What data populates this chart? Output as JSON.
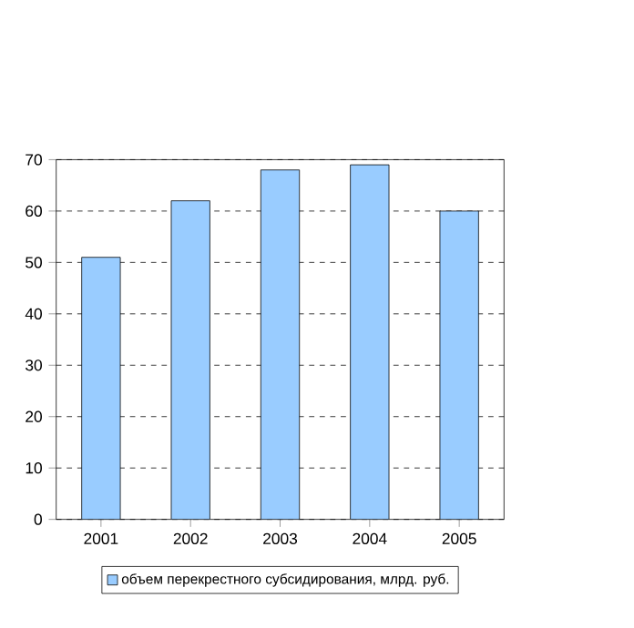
{
  "chart_data": {
    "type": "bar",
    "categories": [
      "2001",
      "2002",
      "2003",
      "2004",
      "2005"
    ],
    "series": [
      {
        "name": "объем перекрестного субсидирования, млрд. руб.",
        "color": "#99ccff",
        "values": [
          51,
          62,
          68,
          69,
          60
        ]
      }
    ],
    "ylim": [
      0,
      70
    ],
    "yticks": [
      0,
      10,
      20,
      30,
      40,
      50,
      60,
      70
    ],
    "grid": "y",
    "legend": "bottom"
  }
}
